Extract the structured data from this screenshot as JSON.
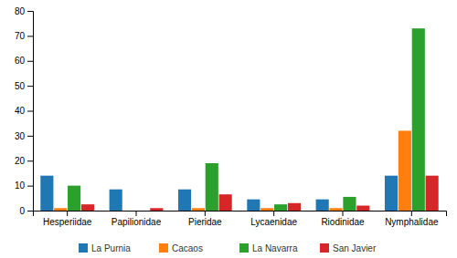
{
  "chart_data": {
    "type": "bar",
    "categories": [
      "Hesperiidae",
      "Papilionidae",
      "Pieridae",
      "Lycaenidae",
      "Riodinidae",
      "Nymphalidae"
    ],
    "series": [
      {
        "name": "La Purnia",
        "values": [
          14,
          8.5,
          8.5,
          4.5,
          4.5,
          14
        ]
      },
      {
        "name": "Cacaos",
        "values": [
          1,
          0,
          1,
          1,
          1,
          32
        ]
      },
      {
        "name": "La Navarra",
        "values": [
          10,
          0,
          19,
          2.5,
          5.5,
          73
        ]
      },
      {
        "name": "San Javier",
        "values": [
          2.5,
          1,
          6.5,
          3,
          2,
          14
        ]
      }
    ],
    "ylim": [
      0,
      80
    ],
    "yticks": [
      0,
      10,
      20,
      30,
      40,
      50,
      60,
      70,
      80
    ],
    "grid": false,
    "legend": "bottom"
  }
}
